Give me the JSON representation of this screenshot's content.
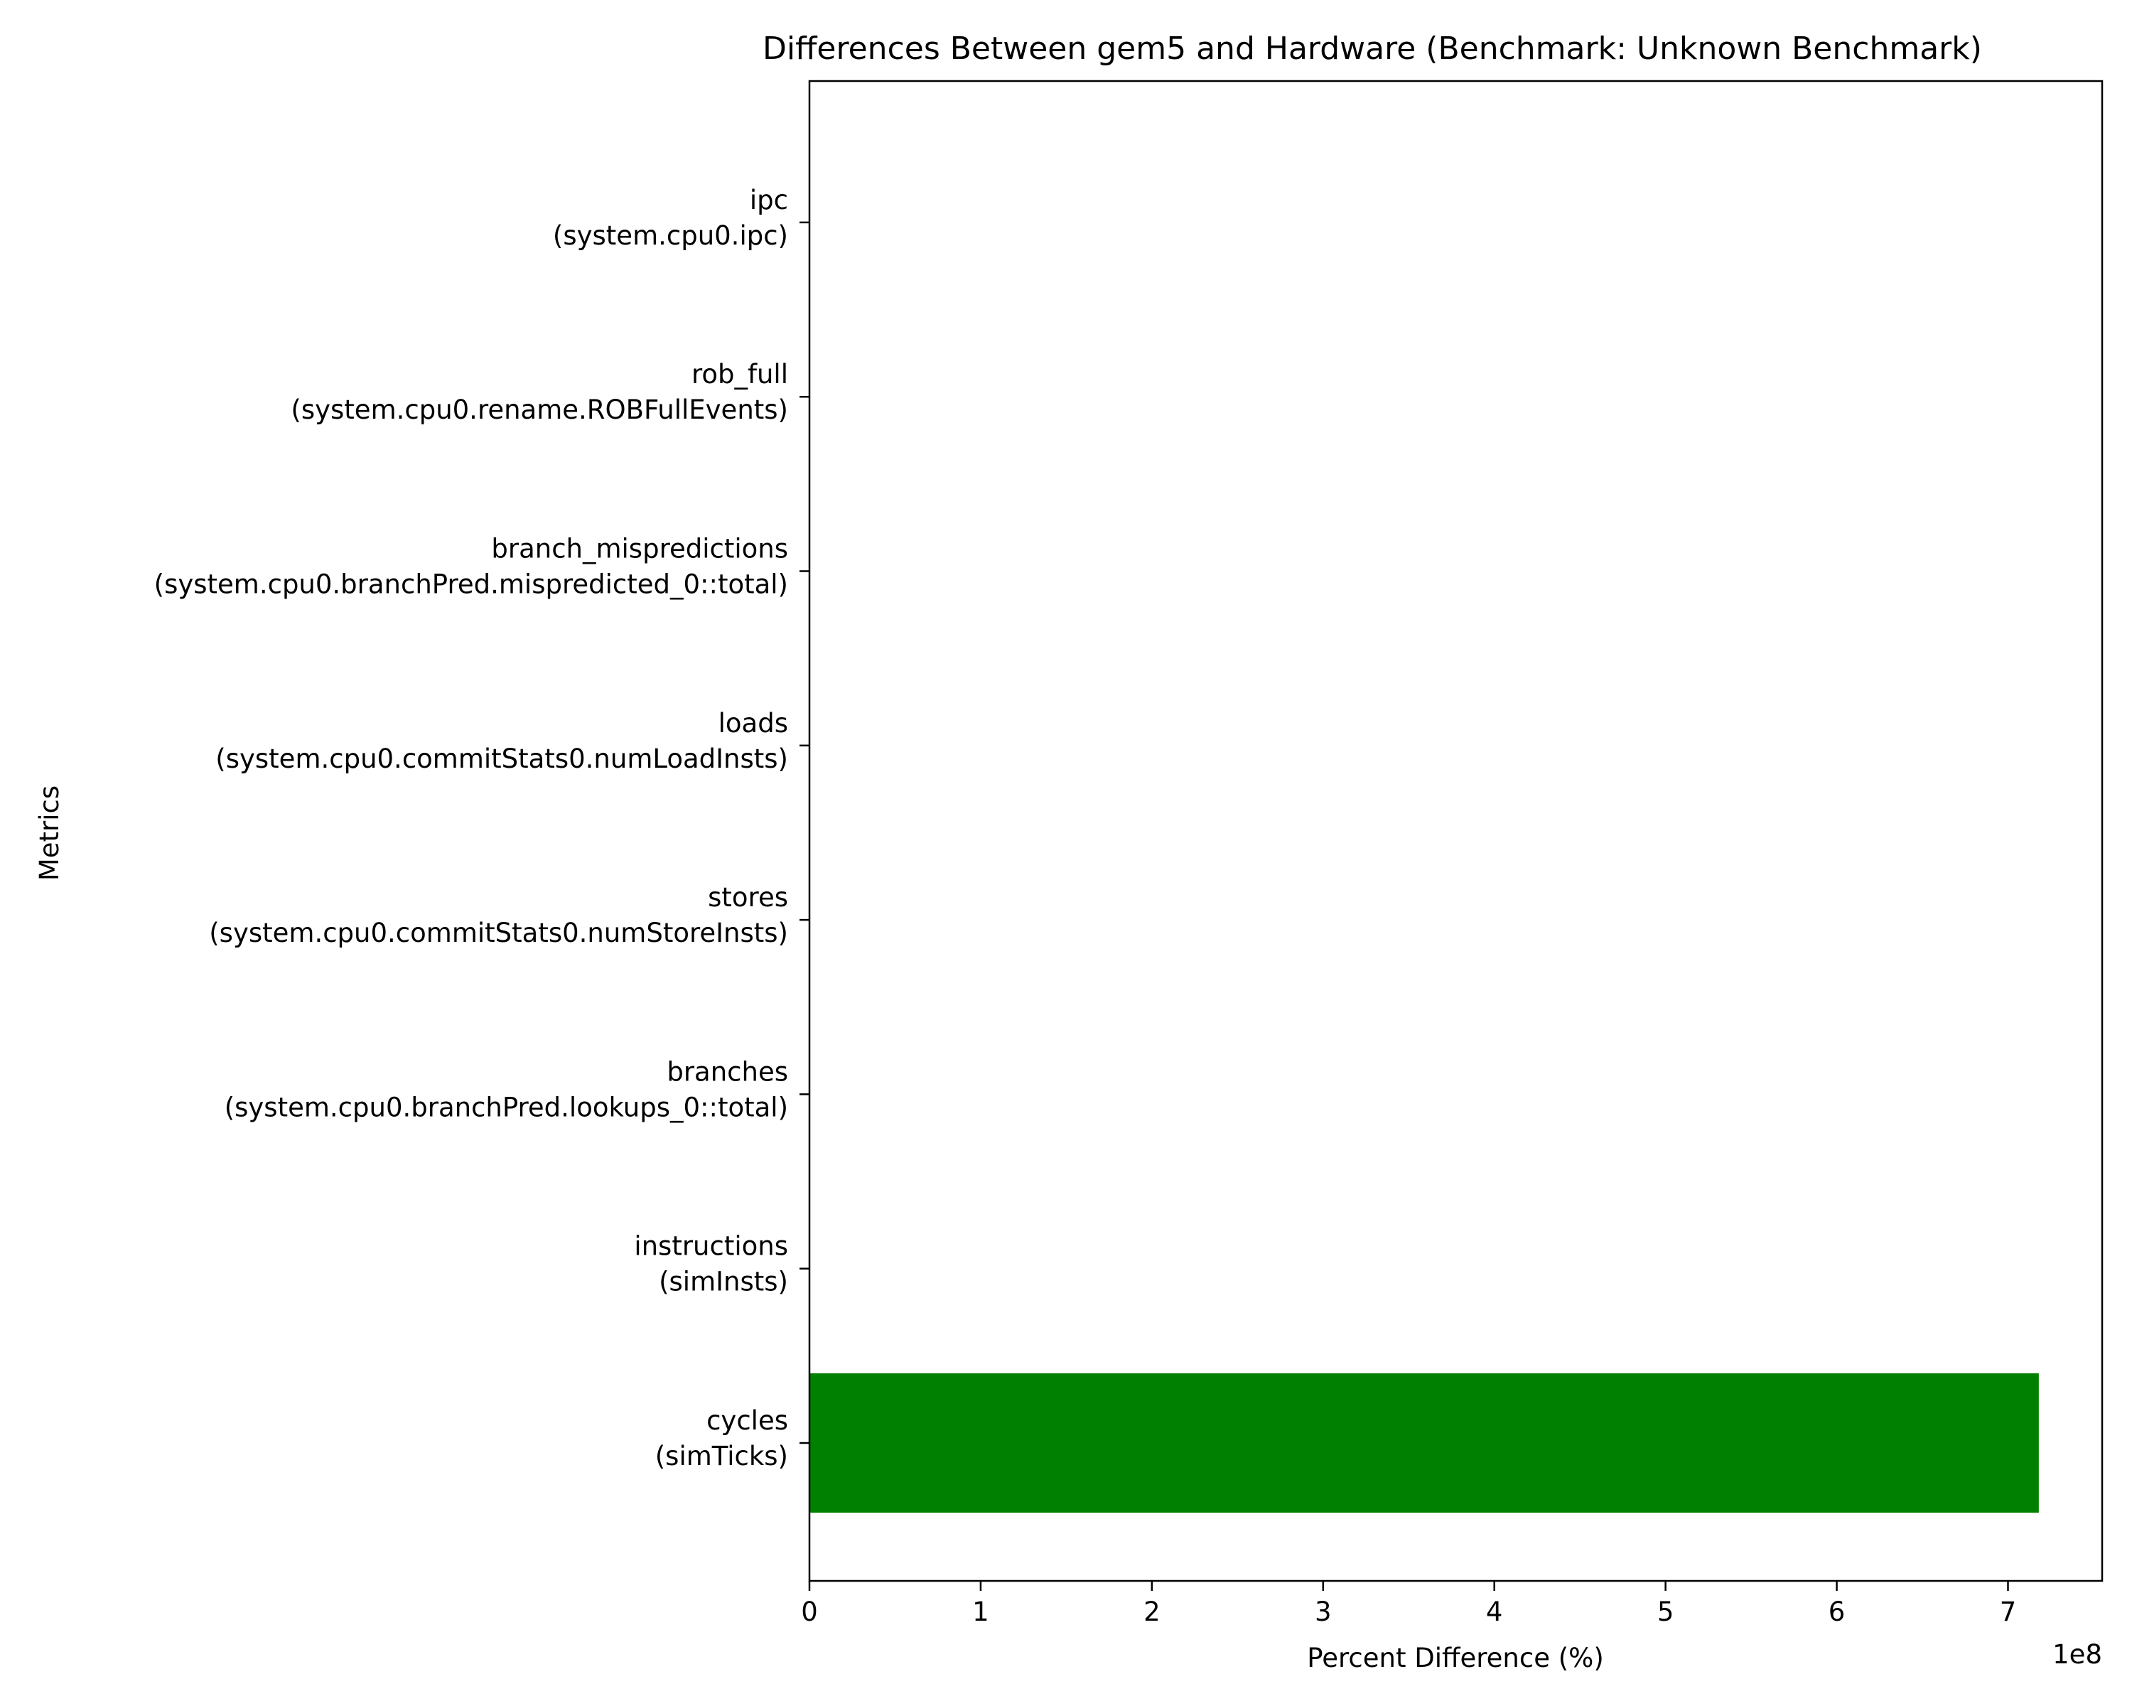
{
  "chart_data": {
    "type": "bar",
    "orientation": "horizontal",
    "title": "Differences Between gem5 and Hardware (Benchmark: Unknown Benchmark)",
    "xlabel": "Percent Difference (%)",
    "ylabel": "Metrics",
    "x_offset_text": "1e8",
    "xlim": [
      0,
      7.55
    ],
    "x_ticks": [
      "0",
      "1",
      "2",
      "3",
      "4",
      "5",
      "6",
      "7"
    ],
    "x_scale_multiplier": 100000000,
    "categories": [
      [
        "cycles",
        "(simTicks)"
      ],
      [
        "instructions",
        "(simInsts)"
      ],
      [
        "branches",
        "(system.cpu0.branchPred.lookups_0::total)"
      ],
      [
        "stores",
        "(system.cpu0.commitStats0.numStoreInsts)"
      ],
      [
        "loads",
        "(system.cpu0.commitStats0.numLoadInsts)"
      ],
      [
        "branch_mispredictions",
        "(system.cpu0.branchPred.mispredicted_0::total)"
      ],
      [
        "rob_full",
        "(system.cpu0.rename.ROBFullEvents)"
      ],
      [
        "ipc",
        "(system.cpu0.ipc)"
      ]
    ],
    "values": [
      7.18,
      0,
      0,
      0,
      0,
      0,
      0,
      0
    ],
    "bar_color": "#008000",
    "grid": false,
    "legend": "none"
  }
}
